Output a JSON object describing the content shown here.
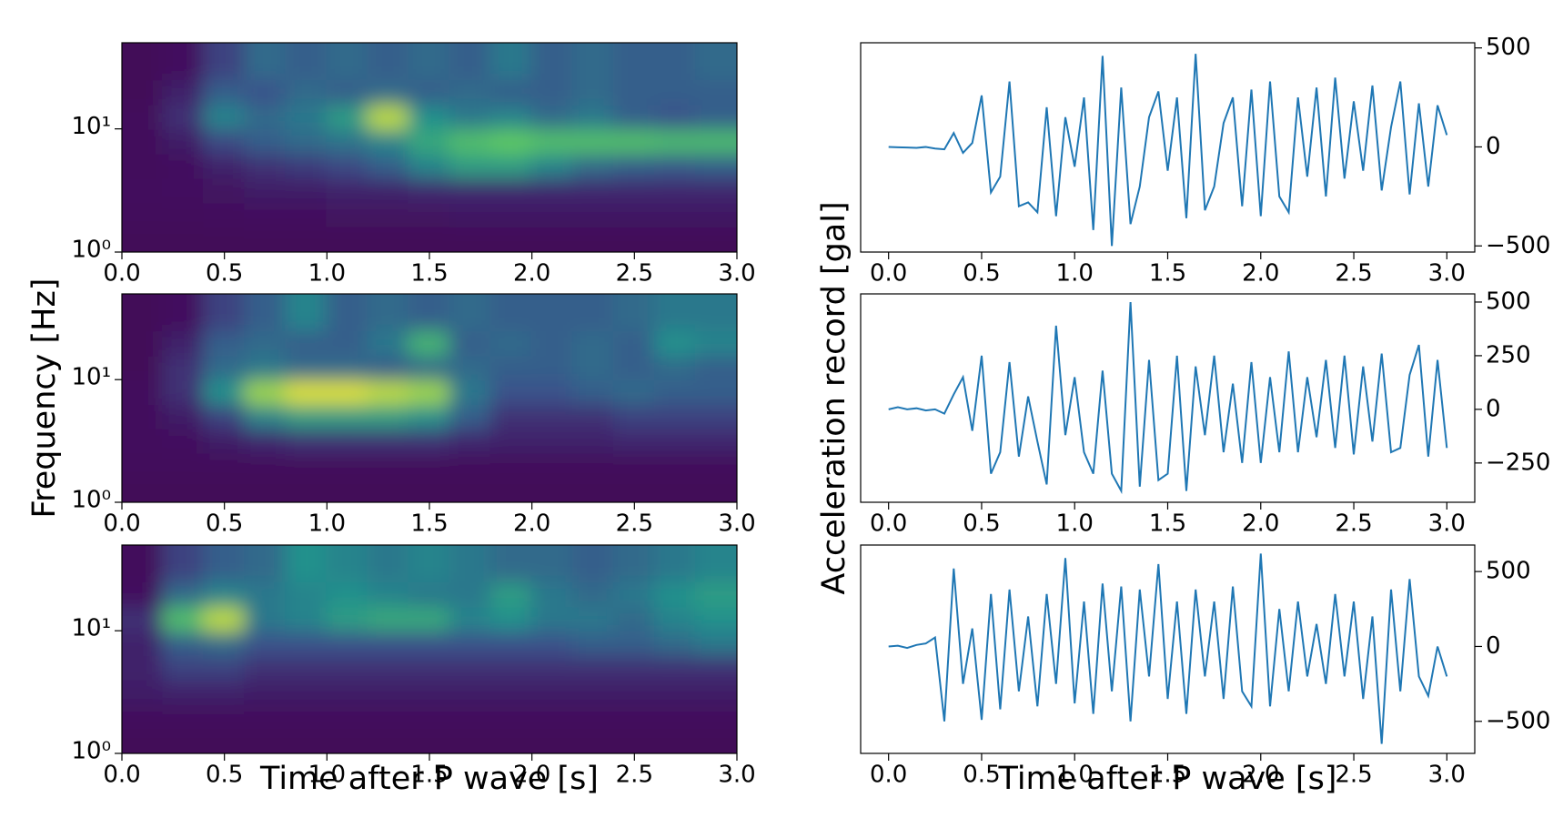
{
  "chart_data": [
    {
      "type": "heatmap",
      "colormap": "viridis",
      "log_y": true,
      "x": [
        0.1,
        0.3,
        0.5,
        0.7,
        0.9,
        1.1,
        1.3,
        1.5,
        1.7,
        1.9,
        2.1,
        2.3,
        2.5,
        2.7,
        2.9
      ],
      "y": [
        1.3,
        2,
        3.2,
        5,
        8,
        12.5,
        20,
        32
      ],
      "z": [
        [
          0.02,
          0.02,
          0.02,
          0.02,
          0.02,
          0.02,
          0.02,
          0.02,
          0.02,
          0.02,
          0.02,
          0.02,
          0.02,
          0.02,
          0.02
        ],
        [
          0.03,
          0.03,
          0.04,
          0.05,
          0.05,
          0.06,
          0.06,
          0.06,
          0.07,
          0.07,
          0.07,
          0.07,
          0.07,
          0.07,
          0.07
        ],
        [
          0.04,
          0.05,
          0.06,
          0.08,
          0.08,
          0.1,
          0.1,
          0.12,
          0.12,
          0.12,
          0.12,
          0.12,
          0.12,
          0.12,
          0.12
        ],
        [
          0.03,
          0.05,
          0.1,
          0.15,
          0.18,
          0.22,
          0.3,
          0.45,
          0.55,
          0.55,
          0.45,
          0.35,
          0.3,
          0.28,
          0.3
        ],
        [
          0.03,
          0.08,
          0.22,
          0.3,
          0.35,
          0.38,
          0.45,
          0.6,
          0.7,
          0.75,
          0.7,
          0.7,
          0.7,
          0.68,
          0.68
        ],
        [
          0.03,
          0.15,
          0.45,
          0.35,
          0.4,
          0.55,
          0.9,
          0.5,
          0.4,
          0.45,
          0.35,
          0.4,
          0.3,
          0.25,
          0.3
        ],
        [
          0.02,
          0.1,
          0.3,
          0.25,
          0.35,
          0.3,
          0.35,
          0.3,
          0.35,
          0.3,
          0.3,
          0.35,
          0.3,
          0.3,
          0.3
        ],
        [
          0.02,
          0.05,
          0.2,
          0.35,
          0.3,
          0.35,
          0.3,
          0.35,
          0.3,
          0.4,
          0.3,
          0.35,
          0.3,
          0.3,
          0.35
        ]
      ],
      "xlim": [
        0,
        3
      ],
      "ylim": [
        1,
        50
      ],
      "xticks": [
        {
          "value": 0,
          "label": "0.0"
        },
        {
          "value": 0.5,
          "label": "0.5"
        },
        {
          "value": 1,
          "label": "1.0"
        },
        {
          "value": 1.5,
          "label": "1.5"
        },
        {
          "value": 2,
          "label": "2.0"
        },
        {
          "value": 2.5,
          "label": "2.5"
        },
        {
          "value": 3,
          "label": "3.0"
        }
      ],
      "yticks": [
        {
          "value": 1,
          "label": "10⁰"
        },
        {
          "value": 10,
          "label": "10¹"
        }
      ],
      "ylabel": "Frequency [Hz]"
    },
    {
      "type": "heatmap",
      "colormap": "viridis",
      "log_y": true,
      "x": [
        0.1,
        0.3,
        0.5,
        0.7,
        0.9,
        1.1,
        1.3,
        1.5,
        1.7,
        1.9,
        2.1,
        2.3,
        2.5,
        2.7,
        2.9
      ],
      "y": [
        1.3,
        2,
        3.2,
        5,
        8,
        12.5,
        20,
        32
      ],
      "z": [
        [
          0.02,
          0.02,
          0.02,
          0.02,
          0.02,
          0.02,
          0.02,
          0.02,
          0.02,
          0.02,
          0.02,
          0.02,
          0.02,
          0.02,
          0.02
        ],
        [
          0.03,
          0.03,
          0.03,
          0.03,
          0.03,
          0.03,
          0.03,
          0.03,
          0.03,
          0.03,
          0.03,
          0.03,
          0.03,
          0.03,
          0.03
        ],
        [
          0.04,
          0.05,
          0.08,
          0.12,
          0.15,
          0.15,
          0.15,
          0.15,
          0.12,
          0.1,
          0.1,
          0.1,
          0.12,
          0.12,
          0.12
        ],
        [
          0.04,
          0.08,
          0.2,
          0.45,
          0.55,
          0.55,
          0.55,
          0.5,
          0.3,
          0.15,
          0.15,
          0.15,
          0.2,
          0.2,
          0.2
        ],
        [
          0.04,
          0.15,
          0.5,
          0.85,
          0.95,
          0.95,
          0.9,
          0.85,
          0.4,
          0.25,
          0.25,
          0.3,
          0.35,
          0.3,
          0.3
        ],
        [
          0.02,
          0.15,
          0.35,
          0.4,
          0.35,
          0.35,
          0.3,
          0.35,
          0.35,
          0.3,
          0.3,
          0.35,
          0.3,
          0.35,
          0.3
        ],
        [
          0.02,
          0.1,
          0.3,
          0.35,
          0.3,
          0.3,
          0.4,
          0.65,
          0.3,
          0.35,
          0.3,
          0.35,
          0.3,
          0.5,
          0.45
        ],
        [
          0.02,
          0.05,
          0.2,
          0.3,
          0.45,
          0.3,
          0.35,
          0.3,
          0.35,
          0.3,
          0.3,
          0.3,
          0.35,
          0.4,
          0.4
        ]
      ],
      "xlim": [
        0,
        3
      ],
      "ylim": [
        1,
        50
      ],
      "xticks": [
        {
          "value": 0,
          "label": "0.0"
        },
        {
          "value": 0.5,
          "label": "0.5"
        },
        {
          "value": 1,
          "label": "1.0"
        },
        {
          "value": 1.5,
          "label": "1.5"
        },
        {
          "value": 2,
          "label": "2.0"
        },
        {
          "value": 2.5,
          "label": "2.5"
        },
        {
          "value": 3,
          "label": "3.0"
        }
      ],
      "yticks": [
        {
          "value": 1,
          "label": "10⁰"
        },
        {
          "value": 10,
          "label": "10¹"
        }
      ]
    },
    {
      "type": "heatmap",
      "colormap": "viridis",
      "log_y": true,
      "x": [
        0.1,
        0.3,
        0.5,
        0.7,
        0.9,
        1.1,
        1.3,
        1.5,
        1.7,
        1.9,
        2.1,
        2.3,
        2.5,
        2.7,
        2.9
      ],
      "y": [
        1.3,
        2,
        3.2,
        5,
        8,
        12.5,
        20,
        32
      ],
      "z": [
        [
          0.02,
          0.02,
          0.02,
          0.02,
          0.02,
          0.02,
          0.02,
          0.02,
          0.02,
          0.02,
          0.02,
          0.02,
          0.02,
          0.02,
          0.02
        ],
        [
          0.04,
          0.04,
          0.04,
          0.04,
          0.04,
          0.04,
          0.04,
          0.04,
          0.04,
          0.04,
          0.04,
          0.04,
          0.04,
          0.04,
          0.04
        ],
        [
          0.08,
          0.1,
          0.1,
          0.08,
          0.08,
          0.08,
          0.08,
          0.08,
          0.08,
          0.08,
          0.08,
          0.08,
          0.08,
          0.08,
          0.08
        ],
        [
          0.1,
          0.2,
          0.2,
          0.15,
          0.15,
          0.15,
          0.15,
          0.15,
          0.15,
          0.15,
          0.15,
          0.15,
          0.15,
          0.15,
          0.15
        ],
        [
          0.1,
          0.3,
          0.35,
          0.25,
          0.25,
          0.25,
          0.25,
          0.25,
          0.25,
          0.25,
          0.25,
          0.3,
          0.3,
          0.35,
          0.4
        ],
        [
          0.15,
          0.7,
          0.9,
          0.4,
          0.45,
          0.55,
          0.6,
          0.6,
          0.45,
          0.5,
          0.4,
          0.4,
          0.35,
          0.45,
          0.5
        ],
        [
          0.05,
          0.35,
          0.45,
          0.4,
          0.45,
          0.5,
          0.45,
          0.4,
          0.4,
          0.55,
          0.4,
          0.35,
          0.4,
          0.5,
          0.55
        ],
        [
          0.03,
          0.2,
          0.3,
          0.35,
          0.5,
          0.45,
          0.4,
          0.45,
          0.4,
          0.35,
          0.35,
          0.3,
          0.35,
          0.4,
          0.45
        ]
      ],
      "xlim": [
        0,
        3
      ],
      "ylim": [
        1,
        50
      ],
      "xticks": [
        {
          "value": 0,
          "label": "0.0"
        },
        {
          "value": 0.5,
          "label": "0.5"
        },
        {
          "value": 1,
          "label": "1.0"
        },
        {
          "value": 1.5,
          "label": "1.5"
        },
        {
          "value": 2,
          "label": "2.0"
        },
        {
          "value": 2.5,
          "label": "2.5"
        },
        {
          "value": 3,
          "label": "3.0"
        }
      ],
      "yticks": [
        {
          "value": 1,
          "label": "10⁰"
        },
        {
          "value": 10,
          "label": "10¹"
        }
      ],
      "xlabel": "Time after P wave [s]"
    },
    {
      "type": "line",
      "color": "#1f77b4",
      "y_axis_side": "right",
      "x": [
        0,
        0.05,
        0.1,
        0.15,
        0.2,
        0.25,
        0.3,
        0.35,
        0.4,
        0.45,
        0.5,
        0.55,
        0.6,
        0.65,
        0.7,
        0.75,
        0.8,
        0.85,
        0.9,
        0.95,
        1,
        1.05,
        1.1,
        1.15,
        1.2,
        1.25,
        1.3,
        1.35,
        1.4,
        1.45,
        1.5,
        1.55,
        1.6,
        1.65,
        1.7,
        1.75,
        1.8,
        1.85,
        1.9,
        1.95,
        2,
        2.05,
        2.1,
        2.15,
        2.2,
        2.25,
        2.3,
        2.35,
        2.4,
        2.45,
        2.5,
        2.55,
        2.6,
        2.65,
        2.7,
        2.75,
        2.8,
        2.85,
        2.9,
        2.95,
        3
      ],
      "values": [
        0,
        -2,
        -3,
        -5,
        0,
        -8,
        -12,
        70,
        -30,
        20,
        260,
        -230,
        -150,
        330,
        -300,
        -280,
        -330,
        200,
        -350,
        150,
        -100,
        250,
        -420,
        460,
        -500,
        300,
        -390,
        -200,
        150,
        280,
        -120,
        250,
        -360,
        470,
        -320,
        -200,
        120,
        250,
        -300,
        290,
        -350,
        330,
        -250,
        -330,
        250,
        -150,
        300,
        -250,
        350,
        -160,
        230,
        -120,
        310,
        -220,
        100,
        330,
        -240,
        220,
        -200,
        210,
        60
      ],
      "xlim": [
        -0.15,
        3.15
      ],
      "ylim": [
        -531,
        526
      ],
      "xticks": [
        {
          "value": 0,
          "label": "0.0"
        },
        {
          "value": 0.5,
          "label": "0.5"
        },
        {
          "value": 1,
          "label": "1.0"
        },
        {
          "value": 1.5,
          "label": "1.5"
        },
        {
          "value": 2,
          "label": "2.0"
        },
        {
          "value": 2.5,
          "label": "2.5"
        },
        {
          "value": 3,
          "label": "3.0"
        }
      ],
      "yticks": [
        {
          "value": -500,
          "label": "−500"
        },
        0,
        500
      ],
      "ylabel": "Acceleration record [gal]"
    },
    {
      "type": "line",
      "color": "#1f77b4",
      "y_axis_side": "right",
      "x": [
        0,
        0.05,
        0.1,
        0.15,
        0.2,
        0.25,
        0.3,
        0.35,
        0.4,
        0.45,
        0.5,
        0.55,
        0.6,
        0.65,
        0.7,
        0.75,
        0.8,
        0.85,
        0.9,
        0.95,
        1,
        1.05,
        1.1,
        1.15,
        1.2,
        1.25,
        1.3,
        1.35,
        1.4,
        1.45,
        1.5,
        1.55,
        1.6,
        1.65,
        1.7,
        1.75,
        1.8,
        1.85,
        1.9,
        1.95,
        2,
        2.05,
        2.1,
        2.15,
        2.2,
        2.25,
        2.3,
        2.35,
        2.4,
        2.45,
        2.5,
        2.55,
        2.6,
        2.65,
        2.7,
        2.75,
        2.8,
        2.85,
        2.9,
        2.95,
        3
      ],
      "values": [
        0,
        10,
        0,
        5,
        -5,
        0,
        -20,
        70,
        150,
        -100,
        250,
        -300,
        -200,
        220,
        -220,
        60,
        -150,
        -350,
        390,
        -120,
        150,
        -200,
        -300,
        180,
        -300,
        -380,
        500,
        -360,
        230,
        -330,
        -300,
        250,
        -380,
        200,
        -120,
        250,
        -200,
        120,
        -250,
        220,
        -250,
        150,
        -200,
        270,
        -200,
        150,
        -130,
        230,
        -180,
        250,
        -210,
        200,
        -150,
        260,
        -200,
        -180,
        160,
        300,
        -220,
        230,
        -180
      ],
      "xlim": [
        -0.15,
        3.15
      ],
      "ylim": [
        -433,
        538
      ],
      "xticks": [
        {
          "value": 0,
          "label": "0.0"
        },
        {
          "value": 0.5,
          "label": "0.5"
        },
        {
          "value": 1,
          "label": "1.0"
        },
        {
          "value": 1.5,
          "label": "1.5"
        },
        {
          "value": 2,
          "label": "2.0"
        },
        {
          "value": 2.5,
          "label": "2.5"
        },
        {
          "value": 3,
          "label": "3.0"
        }
      ],
      "yticks": [
        {
          "value": -250,
          "label": "−250"
        },
        0,
        250,
        500
      ]
    },
    {
      "type": "line",
      "color": "#1f77b4",
      "y_axis_side": "right",
      "x": [
        0,
        0.05,
        0.1,
        0.15,
        0.2,
        0.25,
        0.3,
        0.35,
        0.4,
        0.45,
        0.5,
        0.55,
        0.6,
        0.65,
        0.7,
        0.75,
        0.8,
        0.85,
        0.9,
        0.95,
        1,
        1.05,
        1.1,
        1.15,
        1.2,
        1.25,
        1.3,
        1.35,
        1.4,
        1.45,
        1.5,
        1.55,
        1.6,
        1.65,
        1.7,
        1.75,
        1.8,
        1.85,
        1.9,
        1.95,
        2,
        2.05,
        2.1,
        2.15,
        2.2,
        2.25,
        2.3,
        2.35,
        2.4,
        2.45,
        2.5,
        2.55,
        2.6,
        2.65,
        2.7,
        2.75,
        2.8,
        2.85,
        2.9,
        2.95,
        3
      ],
      "values": [
        0,
        5,
        -10,
        10,
        20,
        60,
        -500,
        520,
        -250,
        120,
        -490,
        350,
        -420,
        380,
        -300,
        200,
        -400,
        350,
        -250,
        590,
        -380,
        300,
        -450,
        420,
        -300,
        400,
        -500,
        380,
        -200,
        550,
        -350,
        300,
        -450,
        380,
        -200,
        300,
        -350,
        400,
        -300,
        -400,
        620,
        -400,
        250,
        -300,
        300,
        -200,
        150,
        -250,
        350,
        -200,
        300,
        -350,
        200,
        -650,
        380,
        -300,
        450,
        -200,
        -330,
        0,
        -200
      ],
      "xlim": [
        -0.15,
        3.15
      ],
      "ylim": [
        -714,
        677
      ],
      "xticks": [
        {
          "value": 0,
          "label": "0.0"
        },
        {
          "value": 0.5,
          "label": "0.5"
        },
        {
          "value": 1,
          "label": "1.0"
        },
        {
          "value": 1.5,
          "label": "1.5"
        },
        {
          "value": 2,
          "label": "2.0"
        },
        {
          "value": 2.5,
          "label": "2.5"
        },
        {
          "value": 3,
          "label": "3.0"
        }
      ],
      "yticks": [
        {
          "value": -500,
          "label": "−500"
        },
        0,
        500
      ],
      "xlabel": "Time after P wave [s]"
    }
  ]
}
